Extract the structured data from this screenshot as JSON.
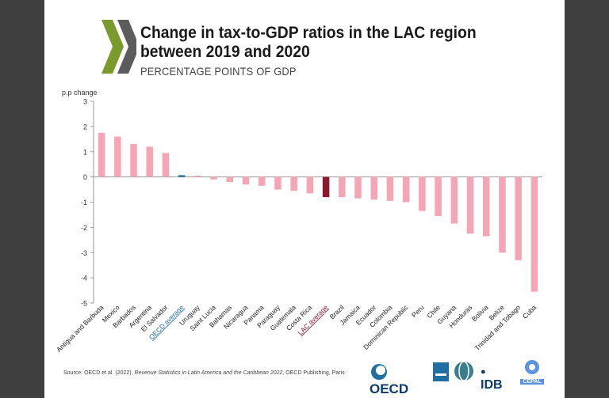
{
  "header": {
    "title": "Change in tax-to-GDP ratios in the LAC region between 2019 and 2020",
    "subtitle": "PERCENTAGE POINTS OF GDP"
  },
  "footer": {
    "source_prefix": "Source: OECD et al. (2022),",
    "source_title": "Revenue Statistics in Latin America and the Caribbean 2022",
    "source_suffix": ", OECD Publishing, Paris",
    "logos": {
      "oecd": "OECD",
      "idb": "IDB",
      "cepal": "CEPAL"
    }
  },
  "colors": {
    "bar": "#f4a6b5",
    "oecd_average": "#1f6fa3",
    "lac_average": "#8b1a2e",
    "logo_green": "#7a9a2e"
  },
  "chart_data": {
    "type": "bar",
    "ylabel": "p.p change",
    "ylim": [
      -5,
      3
    ],
    "yticks": [
      3,
      2,
      1,
      0,
      -1,
      -2,
      -3,
      -4,
      -5
    ],
    "grid": false,
    "categories": [
      "Antigua and Barbuda",
      "Mexico",
      "Barbados",
      "Argentina",
      "El Salvador",
      "OECD average",
      "Uruguay",
      "Saint Lucia",
      "Bahamas",
      "Nicaragua",
      "Panama",
      "Paraguay",
      "Guatemala",
      "Costa Rica",
      "LAC average",
      "Brazil",
      "Jamaica",
      "Ecuador",
      "Colombia",
      "Dominican Republic",
      "Peru",
      "Chile",
      "Guyana",
      "Honduras",
      "Bolivia",
      "Belize",
      "Trinidad and Tobago",
      "Cuba"
    ],
    "values": [
      1.75,
      1.6,
      1.3,
      1.2,
      0.95,
      0.07,
      0.05,
      -0.1,
      -0.2,
      -0.3,
      -0.35,
      -0.5,
      -0.55,
      -0.65,
      -0.8,
      -0.8,
      -0.85,
      -0.9,
      -0.95,
      -1.0,
      -1.35,
      -1.55,
      -1.85,
      -2.25,
      -2.35,
      -3.0,
      -3.3,
      -4.55
    ],
    "highlight": {
      "OECD average": "oecd",
      "LAC average": "lac"
    }
  }
}
